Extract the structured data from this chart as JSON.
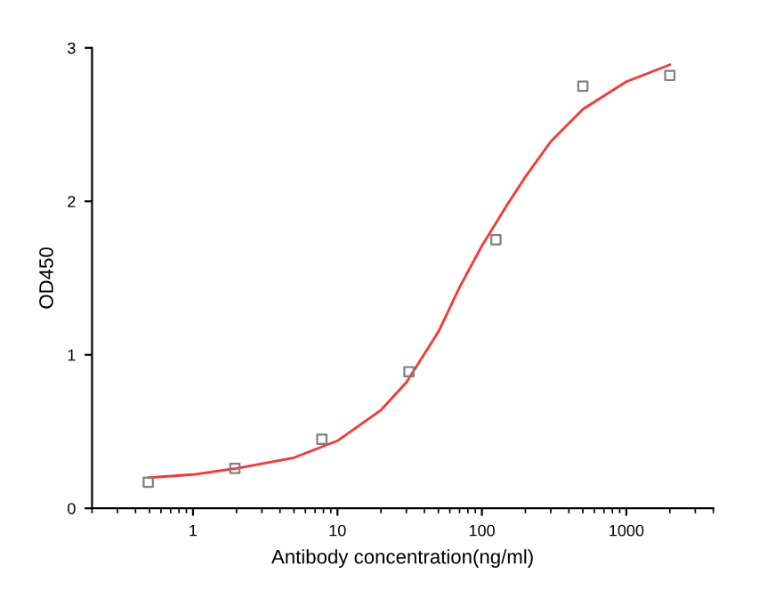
{
  "chart_data": {
    "type": "scatter",
    "xlabel": "Antibody concentration(ng/ml)",
    "ylabel": "OD450",
    "log": "x",
    "xlim": [
      0.2,
      4000
    ],
    "xticks": [
      1,
      10,
      100,
      1000
    ],
    "ylim": [
      0,
      3
    ],
    "yticks": [
      0,
      1,
      2,
      3
    ],
    "grid": false,
    "series": [
      {
        "marker": "square",
        "color": "#808080",
        "x": [
          0.49,
          1.95,
          7.8,
          31.25,
          125,
          500,
          2000
        ],
        "values": [
          0.17,
          0.26,
          0.45,
          0.89,
          1.75,
          2.75,
          2.82
        ]
      },
      {
        "type": "line",
        "marker": "none",
        "line_style": "solid",
        "color": "#ff3333",
        "x": [
          0.5,
          1,
          2,
          5,
          10,
          20,
          30,
          50,
          70,
          100,
          150,
          200,
          300,
          500,
          1000,
          2000
        ],
        "values": [
          0.2,
          0.22,
          0.26,
          0.33,
          0.44,
          0.64,
          0.82,
          1.15,
          1.44,
          1.71,
          1.98,
          2.16,
          2.39,
          2.6,
          2.78,
          2.89
        ]
      }
    ]
  }
}
